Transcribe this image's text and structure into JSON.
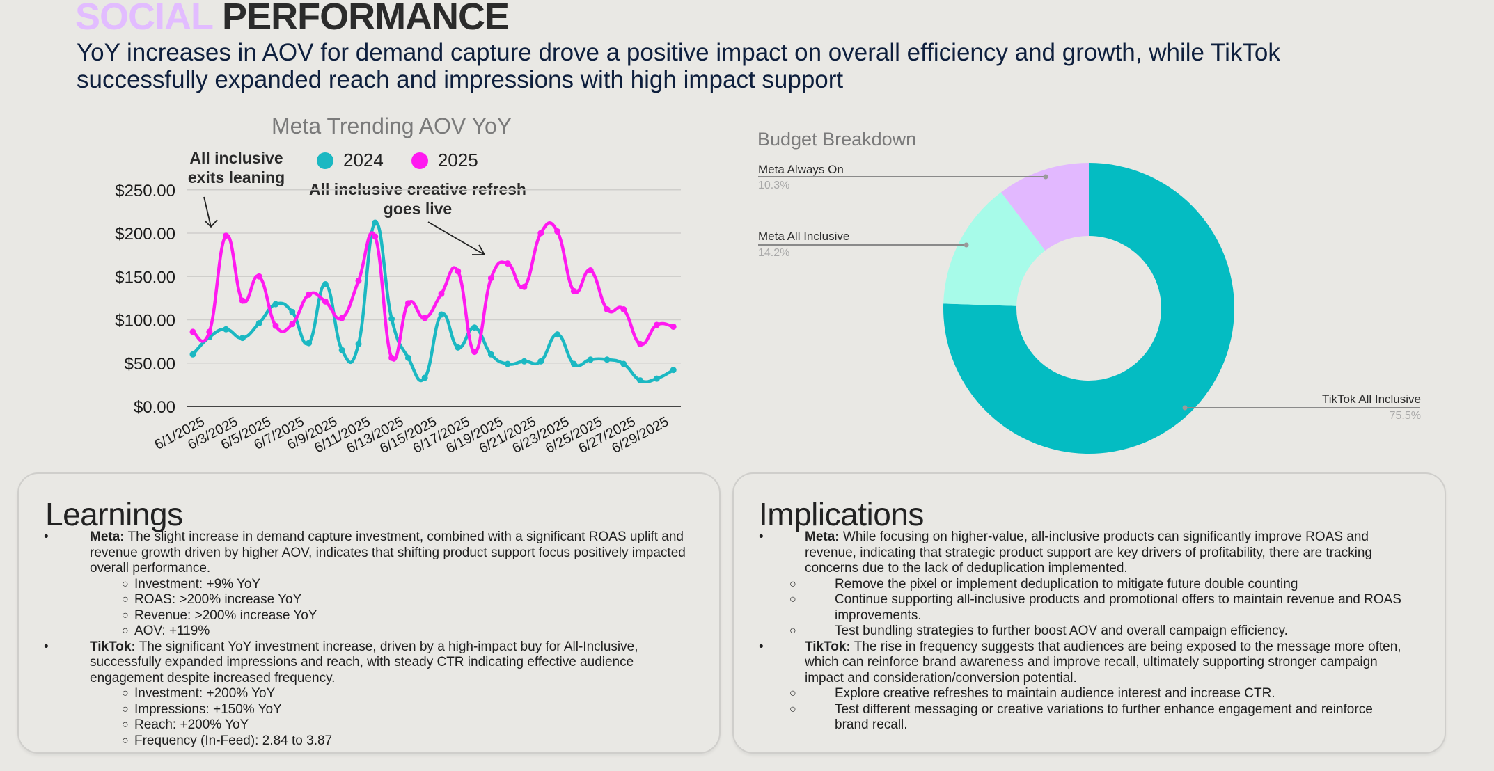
{
  "header": {
    "title_accent": "SOCIAL",
    "title_main": "PERFORMANCE",
    "subtitle": "YoY increases in AOV for demand capture drove a positive impact on overall efficiency and growth, while TikTok successfully expanded reach and impressions with high impact support"
  },
  "colors": {
    "series_2024": "#1bb8c2",
    "series_2025": "#ff1af0",
    "title_accent": "#e2bcff",
    "donut_tiktok": "#04bcc2",
    "donut_meta_all_inclusive": "#a7fbe9",
    "donut_meta_always_on": "#e2b8ff"
  },
  "chart_data": [
    {
      "type": "line",
      "title": "Meta Trending AOV YoY",
      "xlabel": "",
      "ylabel": "",
      "ylim": [
        0,
        250
      ],
      "yticks": [
        "$0.00",
        "$50.00",
        "$100.00",
        "$150.00",
        "$200.00",
        "$250.00"
      ],
      "grid": true,
      "legend": "top",
      "x": [
        "6/1/2025",
        "6/2/2025",
        "6/3/2025",
        "6/4/2025",
        "6/5/2025",
        "6/6/2025",
        "6/7/2025",
        "6/8/2025",
        "6/9/2025",
        "6/10/2025",
        "6/11/2025",
        "6/12/2025",
        "6/13/2025",
        "6/14/2025",
        "6/15/2025",
        "6/16/2025",
        "6/17/2025",
        "6/18/2025",
        "6/19/2025",
        "6/20/2025",
        "6/21/2025",
        "6/22/2025",
        "6/23/2025",
        "6/24/2025",
        "6/25/2025",
        "6/26/2025",
        "6/27/2025",
        "6/28/2025",
        "6/29/2025",
        "6/30/2025"
      ],
      "xtick_labels": [
        "6/1/2025",
        "6/3/2025",
        "6/5/2025",
        "6/7/2025",
        "6/9/2025",
        "6/11/2025",
        "6/13/2025",
        "6/15/2025",
        "6/17/2025",
        "6/19/2025",
        "6/21/2025",
        "6/23/2025",
        "6/25/2025",
        "6/27/2025",
        "6/29/2025"
      ],
      "series": [
        {
          "name": "2024",
          "values": [
            60,
            80,
            89,
            79,
            96,
            118,
            109,
            73,
            141,
            65,
            72,
            212,
            101,
            56,
            33,
            106,
            68,
            91,
            60,
            49,
            52,
            52,
            83,
            49,
            54,
            54,
            49,
            30,
            32,
            42
          ]
        },
        {
          "name": "2025",
          "values": [
            86,
            86,
            197,
            122,
            150,
            93,
            95,
            129,
            121,
            102,
            145,
            196,
            56,
            119,
            102,
            130,
            156,
            63,
            148,
            165,
            138,
            200,
            202,
            133,
            157,
            112,
            112,
            72,
            94,
            92
          ]
        }
      ],
      "annotations": [
        {
          "text_line1": "All inclusive",
          "text_line2": "exits leaning",
          "points_to": "6/3/2025"
        },
        {
          "text_line1": "All inclusive creative refresh",
          "text_line2": "goes live",
          "points_to": "6/19/2025"
        }
      ]
    },
    {
      "type": "pie",
      "title": "Budget Breakdown",
      "donut": true,
      "slices": [
        {
          "label": "TikTok All Inclusive",
          "value": 75.5,
          "pct_label": "75.5%"
        },
        {
          "label": "Meta All Inclusive",
          "value": 14.2,
          "pct_label": "14.2%"
        },
        {
          "label": "Meta Always On",
          "value": 10.3,
          "pct_label": "10.3%"
        }
      ]
    }
  ],
  "learnings": {
    "heading": "Learnings",
    "items": [
      {
        "lead": "Meta:",
        "text": " The slight increase in demand capture investment, combined with a significant ROAS uplift and revenue growth driven by higher AOV, indicates that shifting product support focus positively impacted overall performance.",
        "sub": [
          "Investment: +9% YoY",
          "ROAS: >200% increase YoY",
          "Revenue: >200% increase YoY",
          "AOV: +119%"
        ]
      },
      {
        "lead": "TikTok:",
        "text": " The significant YoY investment increase, driven by a high-impact buy for All-Inclusive, successfully expanded impressions and reach, with steady CTR indicating effective audience engagement despite increased frequency.",
        "sub": [
          "Investment: +200% YoY",
          "Impressions: +150% YoY",
          "Reach: +200% YoY",
          "Frequency (In-Feed): 2.84 to 3.87"
        ]
      }
    ]
  },
  "implications": {
    "heading": "Implications",
    "items": [
      {
        "lead": "Meta:",
        "text": " While focusing on higher-value, all-inclusive products can significantly improve ROAS and revenue, indicating that strategic product support are key drivers of profitability, there are tracking concerns due to the lack of deduplication implemented.",
        "sub": [
          "Remove the pixel or implement deduplication to mitigate future double counting",
          "Continue supporting all-inclusive products and promotional offers to maintain revenue and ROAS improvements.",
          "Test bundling strategies to further boost AOV and overall campaign efficiency."
        ]
      },
      {
        "lead": "TikTok:",
        "text": " The rise in frequency suggests that audiences are being exposed to the message more often, which can reinforce brand awareness and improve recall, ultimately supporting stronger campaign impact and consideration/conversion potential.",
        "sub": [
          "Explore creative refreshes to maintain audience interest and increase CTR.",
          "Test different messaging or creative variations to further enhance engagement and reinforce brand recall."
        ]
      }
    ]
  }
}
